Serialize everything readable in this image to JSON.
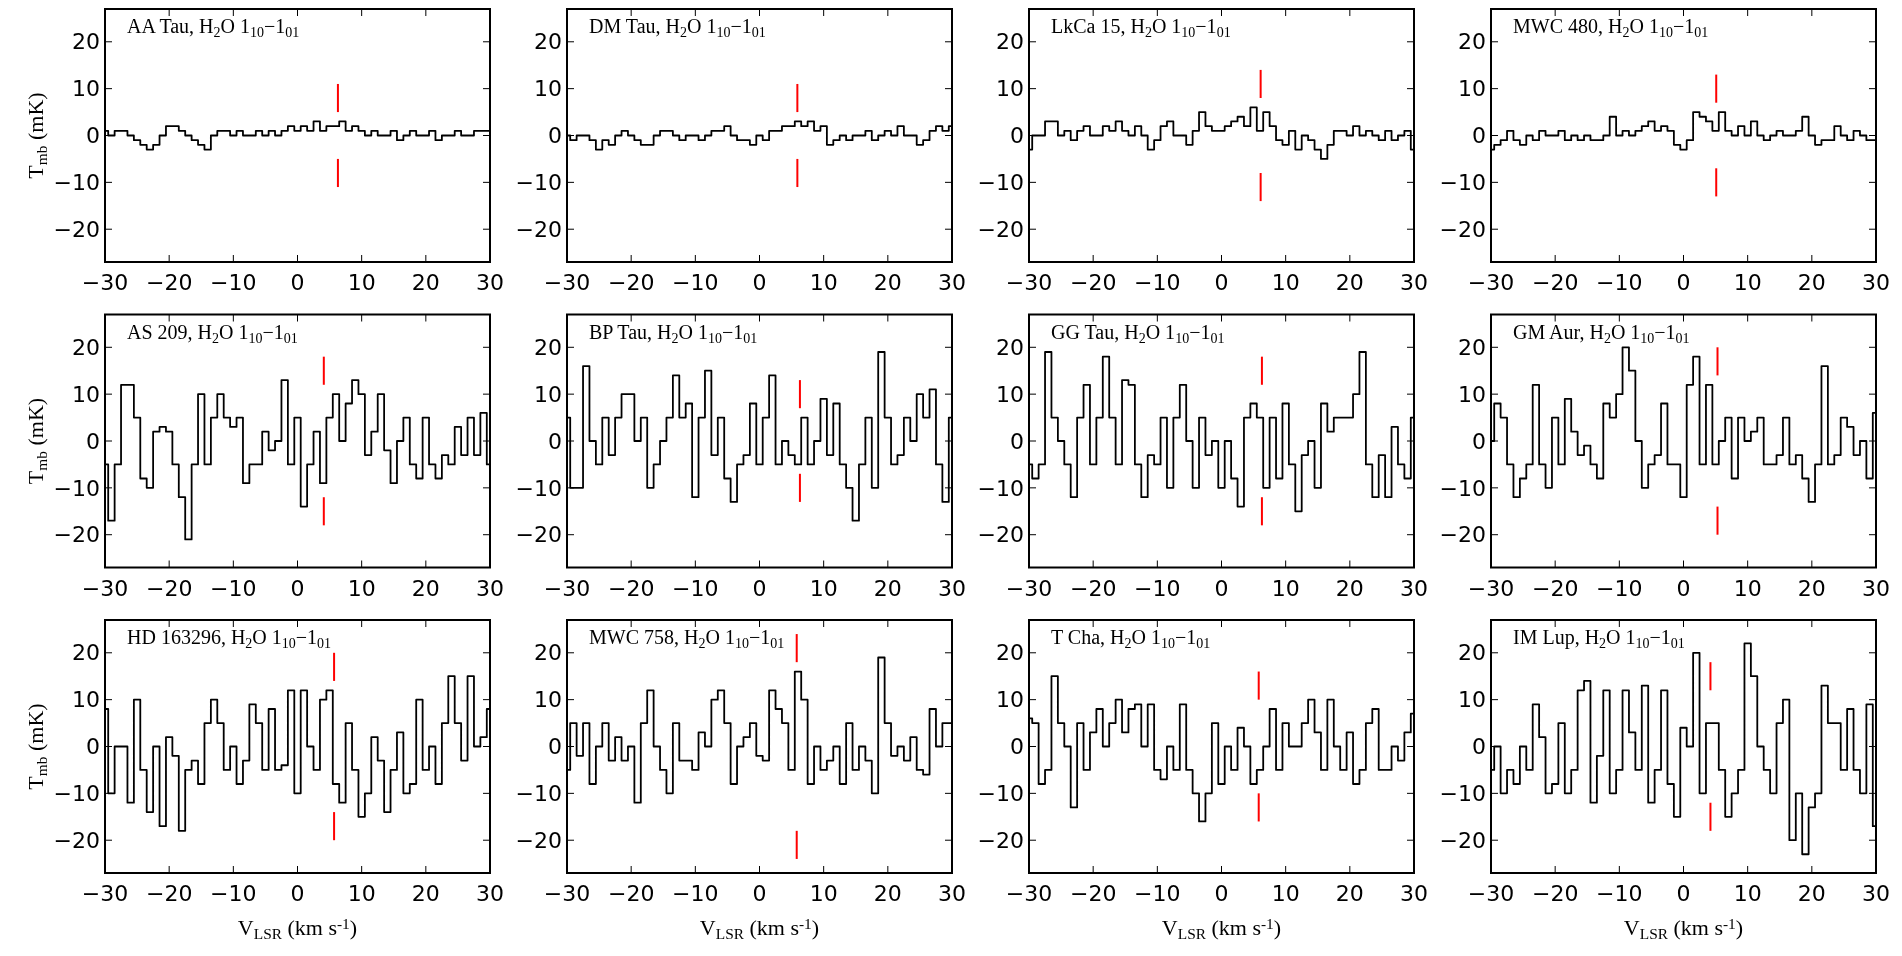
{
  "chart_data": [
    {
      "type": "step",
      "title": "AA Tau, H$_{2}$O 1$_{10}$−1$_{01}$",
      "ylabel": "T$_{mb}$ (mK)",
      "xlim": [
        -30,
        30
      ],
      "ylim": [
        -27,
        27
      ],
      "xticks": [
        -30,
        -20,
        -10,
        0,
        10,
        20,
        30
      ],
      "yticks": [
        -20,
        -10,
        0,
        10,
        20
      ],
      "ref_lines": [
        {
          "axis": "x",
          "value": 6.3,
          "color": "#ff0000"
        }
      ],
      "x": [
        -30,
        -29,
        -28,
        -27,
        -26,
        -25,
        -24,
        -23,
        -22,
        -21,
        -20,
        -19,
        -18,
        -17,
        -16,
        -15,
        -14,
        -13,
        -12,
        -11,
        -10,
        -9,
        -8,
        -7,
        -6,
        -5,
        -4,
        -3,
        -2,
        -1,
        0,
        1,
        2,
        3,
        4,
        5,
        6,
        7,
        8,
        9,
        10,
        11,
        12,
        13,
        14,
        15,
        16,
        17,
        18,
        19,
        20,
        21,
        22,
        23,
        24,
        25,
        26,
        27,
        28,
        29,
        30
      ],
      "series": [
        {
          "color": "#000000",
          "values": [
            1,
            0,
            1,
            1,
            0,
            -1,
            -2,
            -3,
            -2,
            0,
            2,
            2,
            1,
            0,
            -1,
            -2,
            -3,
            0,
            1,
            1,
            0,
            1,
            0,
            0,
            1,
            0,
            1,
            0,
            1,
            2,
            1,
            2,
            1,
            3,
            1,
            2,
            2,
            3,
            1,
            2,
            1,
            0,
            1,
            0,
            0,
            1,
            -1,
            0,
            1,
            0,
            0,
            1,
            -1,
            0,
            0,
            1,
            0,
            0,
            1,
            1,
            1
          ]
        }
      ]
    },
    {
      "type": "step",
      "title": "DM Tau, H$_{2}$O 1$_{10}$−1$_{01}$",
      "xlim": [
        -30,
        30
      ],
      "ylim": [
        -27,
        27
      ],
      "xticks": [
        -30,
        -20,
        -10,
        0,
        10,
        20,
        30
      ],
      "yticks": [
        -20,
        -10,
        0,
        10,
        20
      ],
      "ref_lines": [
        {
          "axis": "x",
          "value": 5.9,
          "color": "#ff0000"
        }
      ],
      "x": [
        -30,
        -29,
        -28,
        -27,
        -26,
        -25,
        -24,
        -23,
        -22,
        -21,
        -20,
        -19,
        -18,
        -17,
        -16,
        -15,
        -14,
        -13,
        -12,
        -11,
        -10,
        -9,
        -8,
        -7,
        -6,
        -5,
        -4,
        -3,
        -2,
        -1,
        0,
        1,
        2,
        3,
        4,
        5,
        6,
        7,
        8,
        9,
        10,
        11,
        12,
        13,
        14,
        15,
        16,
        17,
        18,
        19,
        20,
        21,
        22,
        23,
        24,
        25,
        26,
        27,
        28,
        29,
        30
      ],
      "series": [
        {
          "color": "#000000",
          "values": [
            0,
            -1,
            0,
            0,
            -1,
            -3,
            -1,
            -2,
            0,
            1,
            0,
            -1,
            -2,
            -2,
            0,
            1,
            1,
            0,
            -1,
            0,
            0,
            -1,
            0,
            1,
            1,
            2,
            0,
            -1,
            -1,
            -2,
            0,
            -1,
            1,
            1,
            2,
            2,
            3,
            2,
            3,
            1,
            2,
            -2,
            -1,
            0,
            -1,
            0,
            0,
            1,
            -1,
            0,
            1,
            0,
            2,
            0,
            0,
            -2,
            -1,
            1,
            2,
            1,
            2
          ]
        }
      ]
    },
    {
      "type": "step",
      "title": "LkCa 15, H$_{2}$O 1$_{10}$−1$_{01}$",
      "xlim": [
        -30,
        30
      ],
      "ylim": [
        -27,
        27
      ],
      "xticks": [
        -30,
        -20,
        -10,
        0,
        10,
        20,
        30
      ],
      "yticks": [
        -20,
        -10,
        0,
        10,
        20
      ],
      "ref_lines": [
        {
          "axis": "x",
          "value": 6.1,
          "color": "#ff0000"
        }
      ],
      "x": [
        -30,
        -29,
        -28,
        -27,
        -26,
        -25,
        -24,
        -23,
        -22,
        -21,
        -20,
        -19,
        -18,
        -17,
        -16,
        -15,
        -14,
        -13,
        -12,
        -11,
        -10,
        -9,
        -8,
        -7,
        -6,
        -5,
        -4,
        -3,
        -2,
        -1,
        0,
        1,
        2,
        3,
        4,
        5,
        6,
        7,
        8,
        9,
        10,
        11,
        12,
        13,
        14,
        15,
        16,
        17,
        18,
        19,
        20,
        21,
        22,
        23,
        24,
        25,
        26,
        27,
        28,
        29,
        30
      ],
      "series": [
        {
          "color": "#000000",
          "values": [
            -3,
            0,
            0,
            3,
            3,
            0,
            1,
            -1,
            1,
            2,
            0,
            0,
            2,
            1,
            3,
            1,
            0,
            2,
            0,
            -3,
            -1,
            2,
            3,
            0,
            0,
            -2,
            1,
            5,
            2,
            1,
            1,
            2,
            3,
            4,
            2,
            6,
            1,
            5,
            2,
            -1,
            -2,
            1,
            -3,
            0,
            -1,
            -3,
            -5,
            -2,
            1,
            1,
            0,
            2,
            0,
            1,
            0,
            -1,
            1,
            -1,
            0,
            1,
            -3
          ]
        }
      ]
    },
    {
      "type": "step",
      "title": "MWC 480, H$_{2}$O 1$_{10}$−1$_{01}$",
      "xlim": [
        -30,
        30
      ],
      "ylim": [
        -27,
        27
      ],
      "xticks": [
        -30,
        -20,
        -10,
        0,
        10,
        20,
        30
      ],
      "yticks": [
        -20,
        -10,
        0,
        10,
        20
      ],
      "ref_lines": [
        {
          "axis": "x",
          "value": 5.1,
          "color": "#ff0000"
        }
      ],
      "x": [
        -30,
        -29,
        -28,
        -27,
        -26,
        -25,
        -24,
        -23,
        -22,
        -21,
        -20,
        -19,
        -18,
        -17,
        -16,
        -15,
        -14,
        -13,
        -12,
        -11,
        -10,
        -9,
        -8,
        -7,
        -6,
        -5,
        -4,
        -3,
        -2,
        -1,
        0,
        1,
        2,
        3,
        4,
        5,
        6,
        7,
        8,
        9,
        10,
        11,
        12,
        13,
        14,
        15,
        16,
        17,
        18,
        19,
        20,
        21,
        22,
        23,
        24,
        25,
        26,
        27,
        28,
        29,
        30
      ],
      "series": [
        {
          "color": "#000000",
          "values": [
            -3,
            -2,
            -1,
            1,
            -1,
            -2,
            0,
            -1,
            1,
            0,
            0,
            1,
            -1,
            0,
            -1,
            0,
            -1,
            -1,
            0,
            4,
            0,
            1,
            0,
            1,
            2,
            3,
            1,
            2,
            1,
            -2,
            -3,
            -1,
            5,
            4,
            3,
            1,
            5,
            1,
            0,
            2,
            0,
            3,
            0,
            -1,
            0,
            1,
            0,
            0,
            1,
            4,
            0,
            -2,
            -1,
            -1,
            2,
            0,
            -1,
            1,
            0,
            -1,
            -1
          ]
        }
      ]
    },
    {
      "type": "step",
      "title": "AS 209, H$_{2}$O 1$_{10}$−1$_{01}$",
      "ylabel": "T$_{mb}$ (mK)",
      "xlim": [
        -30,
        30
      ],
      "ylim": [
        -27,
        27
      ],
      "xticks": [
        -30,
        -20,
        -10,
        0,
        10,
        20,
        30
      ],
      "yticks": [
        -20,
        -10,
        0,
        10,
        20
      ],
      "ref_lines": [
        {
          "axis": "x",
          "value": 4.1,
          "color": "#ff0000"
        }
      ],
      "x": [
        -30,
        -29,
        -28,
        -27,
        -26,
        -25,
        -24,
        -23,
        -22,
        -21,
        -20,
        -19,
        -18,
        -17,
        -16,
        -15,
        -14,
        -13,
        -12,
        -11,
        -10,
        -9,
        -8,
        -7,
        -6,
        -5,
        -4,
        -3,
        -2,
        -1,
        0,
        1,
        2,
        3,
        4,
        5,
        6,
        7,
        8,
        9,
        10,
        11,
        12,
        13,
        14,
        15,
        16,
        17,
        18,
        19,
        20,
        21,
        22,
        23,
        24,
        25,
        26,
        27,
        28,
        29,
        30
      ],
      "series": [
        {
          "color": "#000000",
          "values": [
            -5,
            -17,
            -5,
            12,
            12,
            5,
            -8,
            -10,
            2,
            3,
            2,
            -5,
            -12,
            -21,
            -5,
            10,
            -5,
            5,
            10,
            5,
            3,
            5,
            -9,
            -5,
            -5,
            2,
            -2,
            0,
            13,
            -5,
            5,
            -14,
            -5,
            2,
            -9,
            5,
            10,
            0,
            8,
            13,
            10,
            -3,
            2,
            10,
            -2,
            -9,
            0,
            5,
            -5,
            -8,
            5,
            -5,
            -8,
            -3,
            -5,
            3,
            -3,
            5,
            -3,
            6,
            -5
          ]
        }
      ]
    },
    {
      "type": "step",
      "title": "BP Tau, H$_{2}$O 1$_{10}$−1$_{01}$",
      "xlim": [
        -30,
        30
      ],
      "ylim": [
        -27,
        27
      ],
      "xticks": [
        -30,
        -20,
        -10,
        0,
        10,
        20,
        30
      ],
      "yticks": [
        -20,
        -10,
        0,
        10,
        20
      ],
      "ref_lines": [
        {
          "axis": "x",
          "value": 6.3,
          "color": "#ff0000"
        }
      ],
      "x": [
        -30,
        -29,
        -28,
        -27,
        -26,
        -25,
        -24,
        -23,
        -22,
        -21,
        -20,
        -19,
        -18,
        -17,
        -16,
        -15,
        -14,
        -13,
        -12,
        -11,
        -10,
        -9,
        -8,
        -7,
        -6,
        -5,
        -4,
        -3,
        -2,
        -1,
        0,
        1,
        2,
        3,
        4,
        5,
        6,
        7,
        8,
        9,
        10,
        11,
        12,
        13,
        14,
        15,
        16,
        17,
        18,
        19,
        20,
        21,
        22,
        23,
        24,
        25,
        26,
        27,
        28,
        29,
        30
      ],
      "series": [
        {
          "color": "#000000",
          "values": [
            5,
            -10,
            -10,
            16,
            0,
            -5,
            5,
            -3,
            5,
            10,
            10,
            0,
            5,
            -10,
            -5,
            0,
            5,
            14,
            5,
            8,
            -12,
            5,
            15,
            -3,
            5,
            -8,
            -13,
            -5,
            -3,
            8,
            -5,
            5,
            14,
            -5,
            0,
            -3,
            -5,
            5,
            -5,
            0,
            9,
            -3,
            8,
            -5,
            -10,
            -17,
            -5,
            5,
            -10,
            19,
            5,
            -5,
            -3,
            5,
            0,
            10,
            5,
            11,
            -5,
            -13,
            5
          ]
        }
      ]
    },
    {
      "type": "step",
      "title": "GG Tau, H$_{2}$O 1$_{10}$−1$_{01}$",
      "xlim": [
        -30,
        30
      ],
      "ylim": [
        -27,
        27
      ],
      "xticks": [
        -30,
        -20,
        -10,
        0,
        10,
        20,
        30
      ],
      "yticks": [
        -20,
        -10,
        0,
        10,
        20
      ],
      "ref_lines": [
        {
          "axis": "x",
          "value": 6.3,
          "color": "#ff0000"
        }
      ],
      "x": [
        -30,
        -29,
        -28,
        -27,
        -26,
        -25,
        -24,
        -23,
        -22,
        -21,
        -20,
        -19,
        -18,
        -17,
        -16,
        -15,
        -14,
        -13,
        -12,
        -11,
        -10,
        -9,
        -8,
        -7,
        -6,
        -5,
        -4,
        -3,
        -2,
        -1,
        0,
        1,
        2,
        3,
        4,
        5,
        6,
        7,
        8,
        9,
        10,
        11,
        12,
        13,
        14,
        15,
        16,
        17,
        18,
        19,
        20,
        21,
        22,
        23,
        24,
        25,
        26,
        27,
        28,
        29,
        30
      ],
      "series": [
        {
          "color": "#000000",
          "values": [
            -5,
            -8,
            -5,
            19,
            5,
            0,
            -5,
            -12,
            5,
            12,
            -5,
            5,
            18,
            5,
            -5,
            13,
            12,
            -5,
            -12,
            -3,
            -5,
            5,
            -10,
            5,
            12,
            0,
            -10,
            5,
            -3,
            0,
            -10,
            0,
            -8,
            -14,
            5,
            8,
            5,
            -10,
            5,
            -8,
            8,
            -5,
            -15,
            -3,
            0,
            -10,
            8,
            2,
            5,
            5,
            5,
            10,
            19,
            -5,
            -12,
            -3,
            -12,
            3,
            -5,
            -8,
            5
          ]
        }
      ]
    },
    {
      "type": "step",
      "title": "GM Aur, H$_{2}$O 1$_{10}$−1$_{01}$",
      "xlim": [
        -30,
        30
      ],
      "ylim": [
        -27,
        27
      ],
      "xticks": [
        -30,
        -20,
        -10,
        0,
        10,
        20,
        30
      ],
      "yticks": [
        -20,
        -10,
        0,
        10,
        20
      ],
      "ref_lines": [
        {
          "axis": "x",
          "value": 5.3,
          "color": "#ff0000"
        }
      ],
      "x": [
        -30,
        -29,
        -28,
        -27,
        -26,
        -25,
        -24,
        -23,
        -22,
        -21,
        -20,
        -19,
        -18,
        -17,
        -16,
        -15,
        -14,
        -13,
        -12,
        -11,
        -10,
        -9,
        -8,
        -7,
        -6,
        -5,
        -4,
        -3,
        -2,
        -1,
        0,
        1,
        2,
        3,
        4,
        5,
        6,
        7,
        8,
        9,
        10,
        11,
        12,
        13,
        14,
        15,
        16,
        17,
        18,
        19,
        20,
        21,
        22,
        23,
        24,
        25,
        26,
        27,
        28,
        29,
        30
      ],
      "series": [
        {
          "color": "#000000",
          "values": [
            0,
            8,
            5,
            -5,
            -12,
            -8,
            -5,
            12,
            -5,
            -10,
            5,
            -5,
            9,
            2,
            -3,
            -1,
            -5,
            -8,
            8,
            5,
            10,
            20,
            15,
            0,
            -10,
            -5,
            -3,
            8,
            -5,
            -5,
            -12,
            12,
            18,
            -5,
            12,
            -5,
            0,
            5,
            -8,
            5,
            0,
            2,
            5,
            -5,
            -5,
            -3,
            5,
            -5,
            -3,
            -8,
            -13,
            -5,
            16,
            -5,
            -3,
            5,
            3,
            -3,
            0,
            -8,
            6
          ]
        }
      ]
    },
    {
      "type": "step",
      "title": "HD 163296, H$_{2}$O 1$_{10}$−1$_{01}$",
      "xlabel": "V$_{LSR}$ (km s$^{-1}$)",
      "ylabel": "T$_{mb}$ (mK)",
      "xlim": [
        -30,
        30
      ],
      "ylim": [
        -27,
        27
      ],
      "xticks": [
        -30,
        -20,
        -10,
        0,
        10,
        20,
        30
      ],
      "yticks": [
        -20,
        -10,
        0,
        10,
        20
      ],
      "ref_lines": [
        {
          "axis": "x",
          "value": 5.7,
          "color": "#ff0000"
        }
      ],
      "x": [
        -30,
        -29,
        -28,
        -27,
        -26,
        -25,
        -24,
        -23,
        -22,
        -21,
        -20,
        -19,
        -18,
        -17,
        -16,
        -15,
        -14,
        -13,
        -12,
        -11,
        -10,
        -9,
        -8,
        -7,
        -6,
        -5,
        -4,
        -3,
        -2,
        -1,
        0,
        1,
        2,
        3,
        4,
        5,
        6,
        7,
        8,
        9,
        10,
        11,
        12,
        13,
        14,
        15,
        16,
        17,
        18,
        19,
        20,
        21,
        22,
        23,
        24,
        25,
        26,
        27,
        28,
        29,
        30
      ],
      "series": [
        {
          "color": "#000000",
          "values": [
            8,
            -10,
            0,
            0,
            -12,
            10,
            -5,
            -14,
            0,
            -17,
            2,
            -2,
            -18,
            -5,
            -3,
            -8,
            5,
            10,
            5,
            -5,
            0,
            -8,
            -3,
            9,
            5,
            -5,
            8,
            -5,
            -4,
            12,
            -10,
            12,
            0,
            -5,
            10,
            12,
            -8,
            -12,
            5,
            -5,
            -15,
            -10,
            2,
            -3,
            -14,
            -5,
            3,
            -10,
            -8,
            10,
            -5,
            0,
            -8,
            5,
            15,
            5,
            -3,
            15,
            0,
            2,
            8
          ]
        }
      ]
    },
    {
      "type": "step",
      "title": "MWC 758, H$_{2}$O 1$_{10}$−1$_{01}$",
      "xlabel": "V$_{LSR}$ (km s$^{-1}$)",
      "xlim": [
        -30,
        30
      ],
      "ylim": [
        -27,
        27
      ],
      "xticks": [
        -30,
        -20,
        -10,
        0,
        10,
        20,
        30
      ],
      "yticks": [
        -20,
        -10,
        0,
        10,
        20
      ],
      "ref_lines": [
        {
          "axis": "x",
          "value": 5.8,
          "color": "#ff0000"
        }
      ],
      "x": [
        -30,
        -29,
        -28,
        -27,
        -26,
        -25,
        -24,
        -23,
        -22,
        -21,
        -20,
        -19,
        -18,
        -17,
        -16,
        -15,
        -14,
        -13,
        -12,
        -11,
        -10,
        -9,
        -8,
        -7,
        -6,
        -5,
        -4,
        -3,
        -2,
        -1,
        0,
        1,
        2,
        3,
        4,
        5,
        6,
        7,
        8,
        9,
        10,
        11,
        12,
        13,
        14,
        15,
        16,
        17,
        18,
        19,
        20,
        21,
        22,
        23,
        24,
        25,
        26,
        27,
        28,
        29,
        30
      ],
      "series": [
        {
          "color": "#000000",
          "values": [
            -5,
            5,
            -2,
            5,
            -8,
            0,
            5,
            -3,
            2,
            -3,
            0,
            -12,
            5,
            12,
            0,
            -5,
            -10,
            5,
            -3,
            -3,
            -5,
            3,
            0,
            10,
            12,
            5,
            -8,
            0,
            2,
            5,
            -2,
            -3,
            12,
            8,
            5,
            -5,
            16,
            10,
            -8,
            0,
            -5,
            -3,
            0,
            -8,
            5,
            -5,
            0,
            -3,
            -10,
            19,
            5,
            -2,
            0,
            -3,
            2,
            -5,
            -6,
            8,
            0,
            5,
            5
          ]
        }
      ]
    },
    {
      "type": "step",
      "title": "T Cha, H$_{2}$O 1$_{10}$−1$_{01}$",
      "xlabel": "V$_{LSR}$ (km s$^{-1}$)",
      "xlim": [
        -30,
        30
      ],
      "ylim": [
        -27,
        27
      ],
      "xticks": [
        -30,
        -20,
        -10,
        0,
        10,
        20,
        30
      ],
      "yticks": [
        -20,
        -10,
        0,
        10,
        20
      ],
      "ref_lines": [
        {
          "axis": "x",
          "value": 5.8,
          "color": "#ff0000"
        }
      ],
      "x": [
        -30,
        -29,
        -28,
        -27,
        -26,
        -25,
        -24,
        -23,
        -22,
        -21,
        -20,
        -19,
        -18,
        -17,
        -16,
        -15,
        -14,
        -13,
        -12,
        -11,
        -10,
        -9,
        -8,
        -7,
        -6,
        -5,
        -4,
        -3,
        -2,
        -1,
        0,
        1,
        2,
        3,
        4,
        5,
        6,
        7,
        8,
        9,
        10,
        11,
        12,
        13,
        14,
        15,
        16,
        17,
        18,
        19,
        20,
        21,
        22,
        23,
        24,
        25,
        26,
        27,
        28,
        29,
        30
      ],
      "series": [
        {
          "color": "#000000",
          "values": [
            6,
            5,
            -8,
            -5,
            15,
            5,
            0,
            -13,
            5,
            -5,
            3,
            8,
            0,
            5,
            10,
            3,
            8,
            9,
            0,
            9,
            -5,
            -7,
            0,
            -5,
            9,
            -5,
            -10,
            -16,
            -10,
            5,
            -8,
            0,
            -5,
            4,
            0,
            -8,
            -5,
            0,
            8,
            -5,
            5,
            0,
            0,
            5,
            10,
            3,
            -5,
            10,
            0,
            -5,
            3,
            -8,
            -5,
            5,
            8,
            -5,
            -5,
            0,
            -3,
            3,
            7
          ]
        }
      ]
    },
    {
      "type": "step",
      "title": "IM Lup, H$_{2}$O 1$_{10}$−1$_{01}$",
      "xlabel": "V$_{LSR}$ (km s$^{-1}$)",
      "xlim": [
        -30,
        30
      ],
      "ylim": [
        -27,
        27
      ],
      "xticks": [
        -30,
        -20,
        -10,
        0,
        10,
        20,
        30
      ],
      "yticks": [
        -20,
        -10,
        0,
        10,
        20
      ],
      "ref_lines": [
        {
          "axis": "x",
          "value": 4.2,
          "color": "#ff0000"
        }
      ],
      "x": [
        -30,
        -29,
        -28,
        -27,
        -26,
        -25,
        -24,
        -23,
        -22,
        -21,
        -20,
        -19,
        -18,
        -17,
        -16,
        -15,
        -14,
        -13,
        -12,
        -11,
        -10,
        -9,
        -8,
        -7,
        -6,
        -5,
        -4,
        -3,
        -2,
        -1,
        0,
        1,
        2,
        3,
        4,
        5,
        6,
        7,
        8,
        9,
        10,
        11,
        12,
        13,
        14,
        15,
        16,
        17,
        18,
        19,
        20,
        21,
        22,
        23,
        24,
        25,
        26,
        27,
        28,
        29,
        30
      ],
      "series": [
        {
          "color": "#000000",
          "values": [
            -5,
            0,
            -10,
            -5,
            -8,
            0,
            -5,
            9,
            2,
            -10,
            -8,
            5,
            -10,
            -5,
            12,
            14,
            -12,
            -2,
            12,
            -10,
            -5,
            12,
            3,
            -5,
            13,
            -12,
            -5,
            12,
            -8,
            -15,
            4,
            0,
            20,
            -10,
            5,
            5,
            -5,
            -15,
            -10,
            -5,
            22,
            15,
            0,
            -5,
            -10,
            5,
            10,
            -20,
            -10,
            -23,
            -13,
            -10,
            13,
            5,
            5,
            -5,
            8,
            -5,
            -10,
            9,
            -17
          ]
        }
      ]
    }
  ]
}
